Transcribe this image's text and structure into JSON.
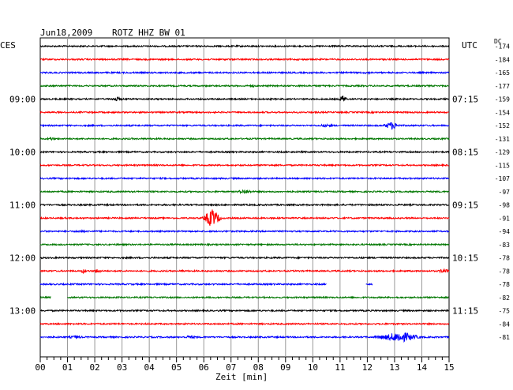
{
  "header": {
    "date": "Jun18,2009",
    "station": "ROTZ HHZ BW 01",
    "left_tz": "CES",
    "right_tz": "UTC",
    "dc_label": "DC"
  },
  "chart_data": {
    "type": "line",
    "title": "Jun18,2009   ROTZ HHZ BW 01",
    "xlabel": "Zeit [min]",
    "xlim": [
      0,
      15
    ],
    "x_ticks": [
      "00",
      "01",
      "02",
      "03",
      "04",
      "05",
      "06",
      "07",
      "08",
      "09",
      "10",
      "11",
      "12",
      "13",
      "14",
      "15"
    ],
    "grid": true,
    "trace_colors": [
      "#000000",
      "#ff0000",
      "#0000ff",
      "#007700"
    ],
    "left_time_labels": [
      {
        "row": 4,
        "text": "09:00"
      },
      {
        "row": 8,
        "text": "10:00"
      },
      {
        "row": 12,
        "text": "11:00"
      },
      {
        "row": 16,
        "text": "12:00"
      },
      {
        "row": 20,
        "text": "13:00"
      }
    ],
    "right_time_labels": [
      {
        "row": 4,
        "text": "07:15"
      },
      {
        "row": 8,
        "text": "08:15"
      },
      {
        "row": 12,
        "text": "09:15"
      },
      {
        "row": 16,
        "text": "10:15"
      },
      {
        "row": 20,
        "text": "11:15"
      }
    ],
    "dc_offsets": [
      "-174",
      "-184",
      "-165",
      "-177",
      "-159",
      "-154",
      "-152",
      "-131",
      "-129",
      "-115",
      "-107",
      "-97",
      "-98",
      "-91",
      "-94",
      "-83",
      "-78",
      "-78",
      "-78",
      "-82",
      "-75",
      "-84",
      "-81"
    ],
    "traces": [
      {
        "row": 0,
        "start": 0,
        "end": 15,
        "events": []
      },
      {
        "row": 1,
        "start": 0,
        "end": 15,
        "events": []
      },
      {
        "row": 2,
        "start": 0,
        "end": 15,
        "events": [
          {
            "t": 12.0,
            "amp": 2,
            "dur": 0.2
          }
        ]
      },
      {
        "row": 3,
        "start": 0,
        "end": 15,
        "events": [
          {
            "t": 7.8,
            "amp": 2,
            "dur": 0.2
          }
        ]
      },
      {
        "row": 4,
        "start": 0,
        "end": 15,
        "events": [
          {
            "t": 2.8,
            "amp": 3,
            "dur": 0.3
          },
          {
            "t": 11.1,
            "amp": 5,
            "dur": 0.2
          }
        ]
      },
      {
        "row": 5,
        "start": 0,
        "end": 15,
        "events": []
      },
      {
        "row": 6,
        "start": 0,
        "end": 15,
        "events": [
          {
            "t": 10.5,
            "amp": 2,
            "dur": 0.5
          },
          {
            "t": 12.9,
            "amp": 5,
            "dur": 0.4
          }
        ]
      },
      {
        "row": 7,
        "start": 0,
        "end": 15,
        "events": [
          {
            "t": 0.4,
            "amp": 2,
            "dur": 0.3
          }
        ]
      },
      {
        "row": 8,
        "start": 0,
        "end": 15,
        "events": []
      },
      {
        "row": 9,
        "start": 0,
        "end": 15,
        "events": []
      },
      {
        "row": 10,
        "start": 0,
        "end": 15,
        "events": []
      },
      {
        "row": 11,
        "start": 0,
        "end": 15,
        "events": [
          {
            "t": 7.5,
            "amp": 3,
            "dur": 0.4
          }
        ]
      },
      {
        "row": 12,
        "start": 0,
        "end": 15,
        "events": []
      },
      {
        "row": 13,
        "start": 0,
        "end": 15,
        "events": [
          {
            "t": 6.3,
            "amp": 12,
            "dur": 0.4
          }
        ]
      },
      {
        "row": 14,
        "start": 0,
        "end": 15,
        "events": [
          {
            "t": 1.5,
            "amp": 2,
            "dur": 0.4
          }
        ]
      },
      {
        "row": 15,
        "start": 0,
        "end": 15,
        "events": []
      },
      {
        "row": 16,
        "start": 0,
        "end": 15,
        "events": []
      },
      {
        "row": 17,
        "start": 0,
        "end": 15,
        "events": [
          {
            "t": 1.6,
            "amp": 3,
            "dur": 0.2
          },
          {
            "t": 2.1,
            "amp": 3,
            "dur": 0.2
          },
          {
            "t": 5.2,
            "amp": 2,
            "dur": 0.1
          },
          {
            "t": 14.8,
            "amp": 3,
            "dur": 0.3
          }
        ]
      },
      {
        "row": 18,
        "start": 0,
        "end": 10.5,
        "events": []
      },
      {
        "row": 18,
        "start": 11.95,
        "end": 12.2,
        "events": []
      },
      {
        "row": 19,
        "start": 0,
        "end": 0.4,
        "events": []
      },
      {
        "row": 19,
        "start": 1.0,
        "end": 15,
        "events": []
      },
      {
        "row": 20,
        "start": 0,
        "end": 15,
        "events": []
      },
      {
        "row": 21,
        "start": 0,
        "end": 15,
        "events": []
      },
      {
        "row": 22,
        "start": 0,
        "end": 15,
        "events": [
          {
            "t": 1.3,
            "amp": 2,
            "dur": 0.5
          },
          {
            "t": 5.5,
            "amp": 2,
            "dur": 0.5
          },
          {
            "t": 12.6,
            "amp": 3,
            "dur": 0.6
          },
          {
            "t": 13.2,
            "amp": 7,
            "dur": 0.9
          }
        ]
      }
    ]
  }
}
